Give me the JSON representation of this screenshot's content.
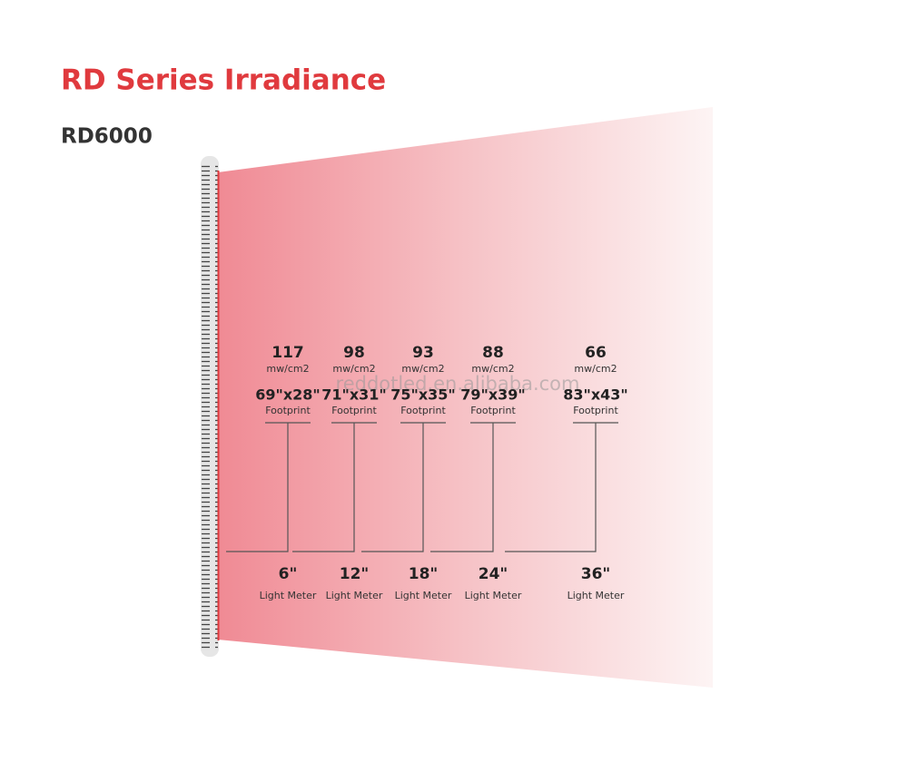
{
  "header": {
    "title": "RD Series Irradiance",
    "model": "RD6000"
  },
  "watermark": "reddotled.en.alibaba.com",
  "columns": [
    {
      "irradiance": 117,
      "unit": "mw/cm2",
      "footprint": "69\"x28\"",
      "footprint_label": "Footprint",
      "distance": "6\"",
      "distance_label": "Light Meter"
    },
    {
      "irradiance": 98,
      "unit": "mw/cm2",
      "footprint": "71\"x31\"",
      "footprint_label": "Footprint",
      "distance": "12\"",
      "distance_label": "Light Meter"
    },
    {
      "irradiance": 93,
      "unit": "mw/cm2",
      "footprint": "75\"x35\"",
      "footprint_label": "Footprint",
      "distance": "18\"",
      "distance_label": "Light Meter"
    },
    {
      "irradiance": 88,
      "unit": "mw/cm2",
      "footprint": "79\"x39\"",
      "footprint_label": "Footprint",
      "distance": "24\"",
      "distance_label": "Light Meter"
    },
    {
      "irradiance": 66,
      "unit": "mw/cm2",
      "footprint": "83\"x43\"",
      "footprint_label": "Footprint",
      "distance": "36\"",
      "distance_label": "Light Meter"
    }
  ]
}
